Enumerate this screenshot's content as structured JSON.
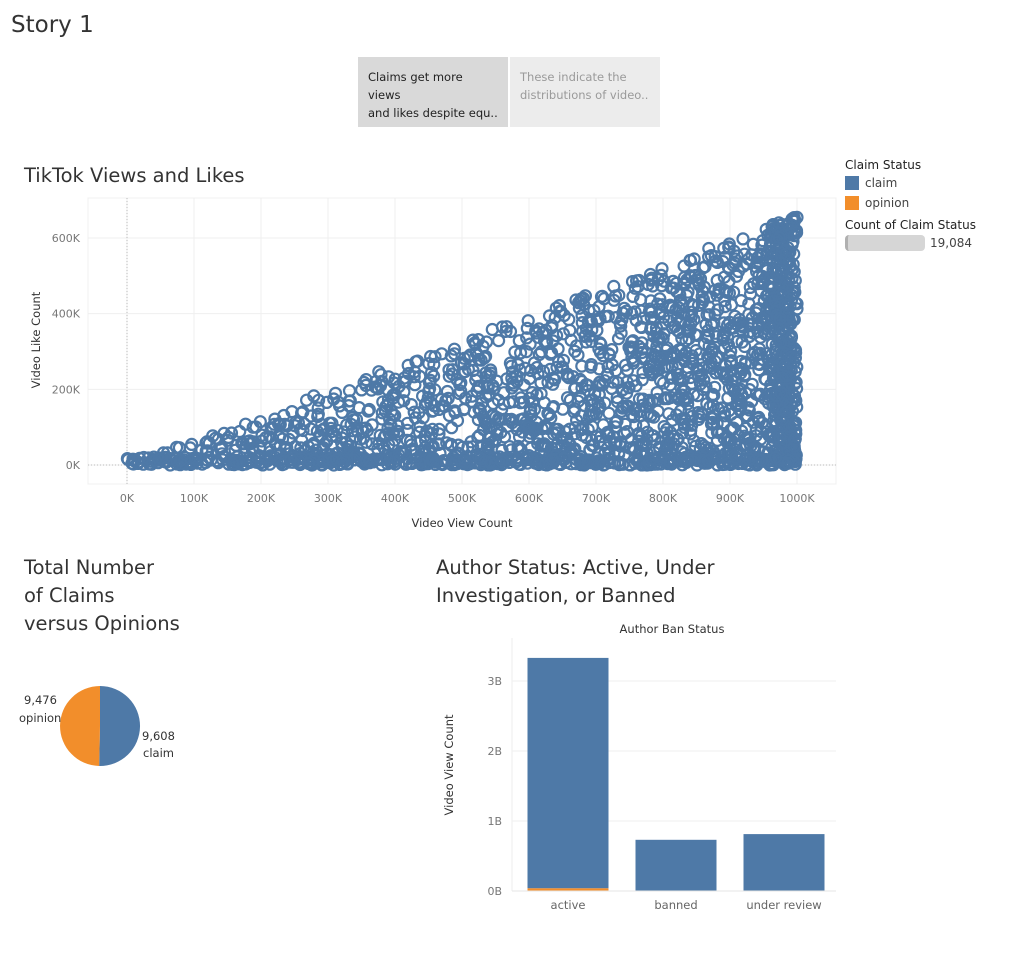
{
  "story": {
    "title": "Story 1"
  },
  "nav": {
    "tabs": [
      {
        "label_line1": "Claims get more views",
        "label_line2": "and likes despite equ..",
        "active": true
      },
      {
        "label_line1": "These indicate the",
        "label_line2": "distributions of video..",
        "active": false
      }
    ]
  },
  "legend": {
    "title": "Claim Status",
    "items": [
      {
        "label": "claim",
        "color": "#4e79a7"
      },
      {
        "label": "opinion",
        "color": "#f28e2b"
      }
    ],
    "count_title": "Count of Claim Status",
    "count_value": "19,084"
  },
  "chart_data": [
    {
      "type": "scatter",
      "title": "TikTok Views and Likes",
      "xlabel": "Video View Count",
      "ylabel": "Video Like Count",
      "xlim": [
        0,
        1000000
      ],
      "ylim": [
        0,
        600000
      ],
      "x_ticks": [
        "0K",
        "100K",
        "200K",
        "300K",
        "400K",
        "500K",
        "600K",
        "700K",
        "800K",
        "900K",
        "1000K"
      ],
      "y_ticks": [
        "0K",
        "200K",
        "400K",
        "600K"
      ],
      "max_like_to_view_ratio": 0.66,
      "series": [
        {
          "name": "claim",
          "color": "#4e79a7",
          "point_count": 9608
        },
        {
          "name": "opinion",
          "color": "#f28e2b",
          "point_count": 9476
        }
      ],
      "grid": true
    },
    {
      "type": "pie",
      "title_lines": [
        "Total Number",
        "of Claims",
        "versus Opinions"
      ],
      "slices": [
        {
          "name": "claim",
          "value": 9608,
          "value_label": "9,608",
          "color": "#4e79a7"
        },
        {
          "name": "opinion",
          "value": 9476,
          "value_label": "9,476",
          "color": "#f28e2b"
        }
      ]
    },
    {
      "type": "bar",
      "title_lines": [
        "Author Status: Active, Under",
        "Investigation, or Banned"
      ],
      "header": "Author Ban Status",
      "ylabel": "Video View Count",
      "categories": [
        "active",
        "banned",
        "under review"
      ],
      "ylim": [
        0,
        3500000000
      ],
      "y_ticks": [
        {
          "value": 0,
          "label": "0B"
        },
        {
          "value": 1000000000,
          "label": "1B"
        },
        {
          "value": 2000000000,
          "label": "2B"
        },
        {
          "value": 3000000000,
          "label": "3B"
        }
      ],
      "series": [
        {
          "name": "opinion",
          "color": "#f28e2b",
          "values": [
            40000000,
            2000000,
            3000000
          ]
        },
        {
          "name": "claim",
          "color": "#4e79a7",
          "values": [
            3290000000,
            730000000,
            810000000
          ]
        }
      ],
      "stacked": true
    }
  ]
}
